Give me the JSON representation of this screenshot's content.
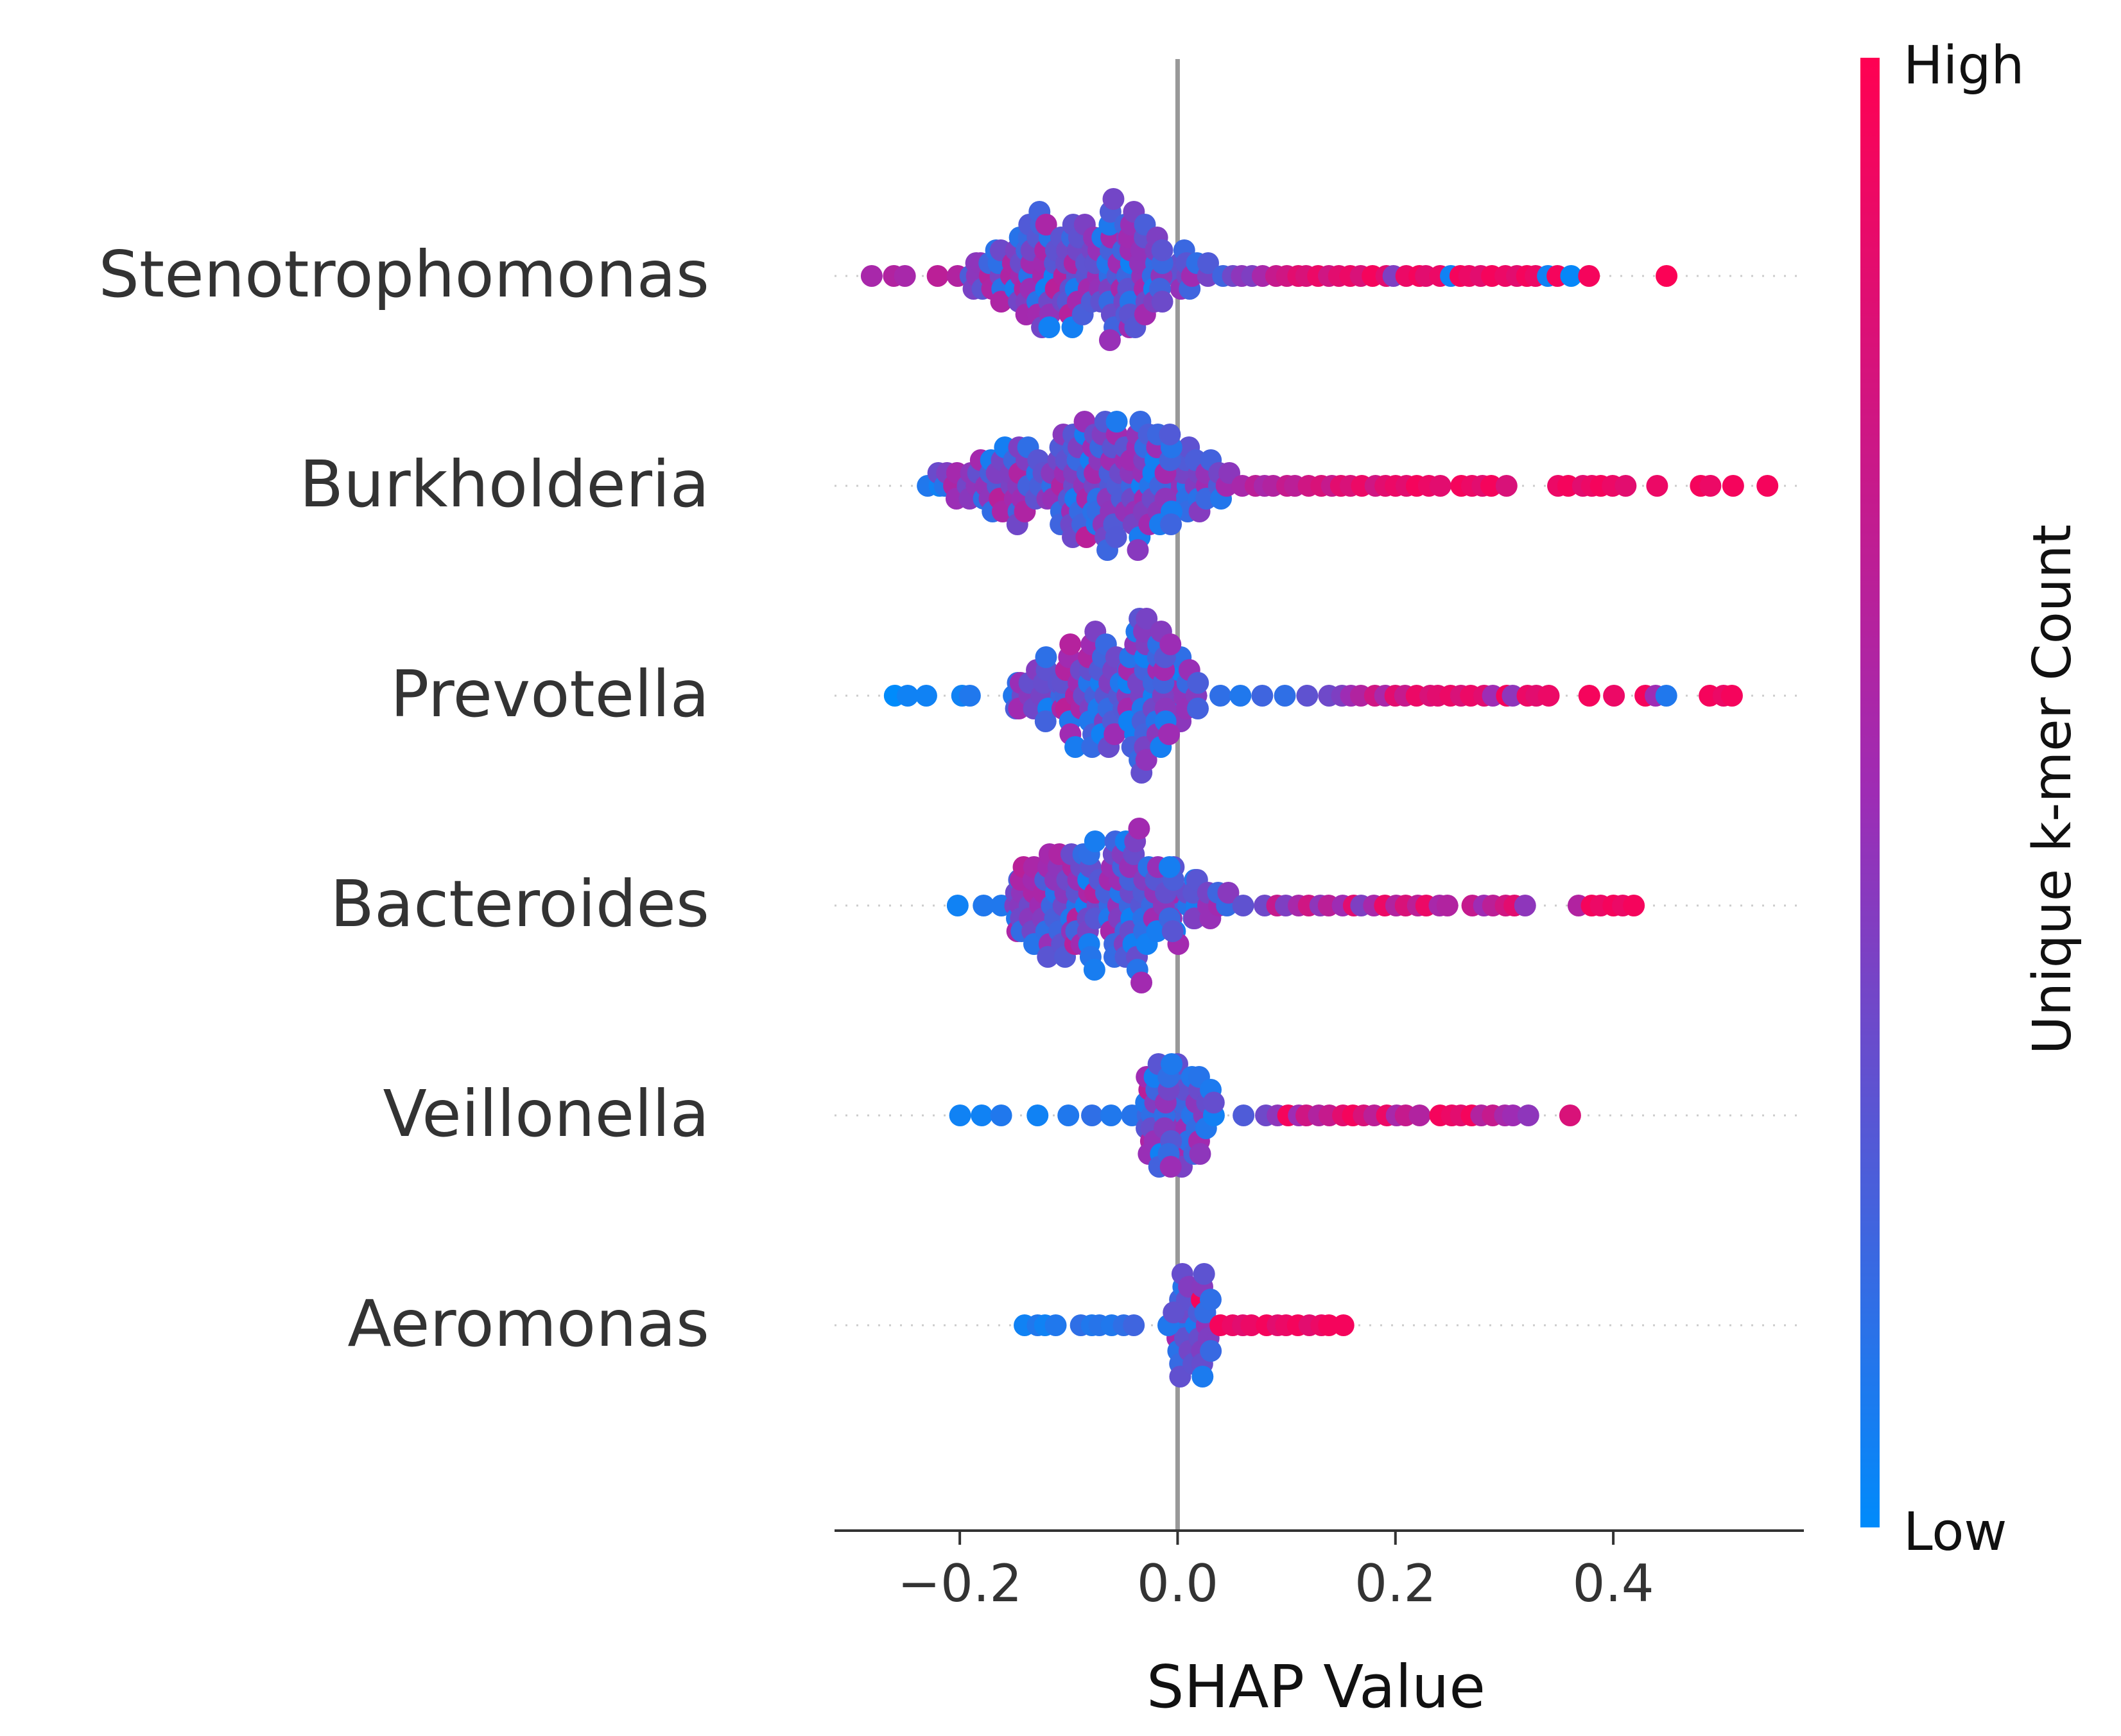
{
  "chart_data": {
    "type": "scatter",
    "subtype": "beeswarm",
    "xlabel": "SHAP Value",
    "x_ticks": [
      -0.2,
      0.0,
      0.2,
      0.4
    ],
    "x_tick_labels": [
      "−0.2",
      "0.0",
      "0.2",
      "0.4"
    ],
    "xlim": [
      -0.315,
      0.575
    ],
    "zero_line": true,
    "grid": false,
    "colorbar": {
      "label": "Unique k-mer Count",
      "high_label": "High",
      "low_label": "Low",
      "low_color": "#008bfb",
      "mid_color": "#9e2cb4",
      "high_color": "#ff0052",
      "placement": "right"
    },
    "features": [
      {
        "name": "Stenotrophomonas",
        "min": -0.28,
        "max": 0.45,
        "core_min": -0.19,
        "core_max": 0.03,
        "peak": -0.09,
        "spread": 0.05,
        "max_height": 13,
        "points": [
          [
            -0.28,
            0.55
          ],
          [
            -0.26,
            0.6
          ],
          [
            -0.25,
            0.55
          ],
          [
            -0.22,
            0.65
          ],
          [
            -0.2,
            0.6
          ],
          [
            -0.18,
            0.55
          ],
          [
            -0.16,
            0.5
          ],
          [
            -0.14,
            0.4
          ],
          [
            -0.12,
            0.35
          ],
          [
            -0.11,
            0.3
          ],
          [
            -0.1,
            0.35
          ],
          [
            -0.09,
            0.3
          ],
          [
            -0.08,
            0.25
          ],
          [
            -0.07,
            0.3
          ],
          [
            -0.06,
            0.25
          ],
          [
            -0.05,
            0.2
          ],
          [
            -0.04,
            0.3
          ],
          [
            -0.03,
            0.35
          ],
          [
            -0.02,
            0.4
          ],
          [
            -0.01,
            0.25
          ],
          [
            0.0,
            0.3
          ],
          [
            0.01,
            0.2
          ],
          [
            0.02,
            0.15
          ],
          [
            0.03,
            0.3
          ],
          [
            0.04,
            0.2
          ],
          [
            0.05,
            0.35
          ],
          [
            0.06,
            0.45
          ],
          [
            0.07,
            0.4
          ],
          [
            0.08,
            0.55
          ],
          [
            0.09,
            0.7
          ],
          [
            0.1,
            0.75
          ],
          [
            0.11,
            0.85
          ],
          [
            0.12,
            0.8
          ],
          [
            0.13,
            0.9
          ],
          [
            0.14,
            0.75
          ],
          [
            0.15,
            0.85
          ],
          [
            0.16,
            0.9
          ],
          [
            0.17,
            0.8
          ],
          [
            0.18,
            0.95
          ],
          [
            0.19,
            0.85
          ],
          [
            0.2,
            0.4
          ],
          [
            0.21,
            0.9
          ],
          [
            0.22,
            0.95
          ],
          [
            0.23,
            0.85
          ],
          [
            0.24,
            0.9
          ],
          [
            0.25,
            0.05
          ],
          [
            0.26,
            0.95
          ],
          [
            0.27,
            0.9
          ],
          [
            0.28,
            0.85
          ],
          [
            0.29,
            0.95
          ],
          [
            0.3,
            0.9
          ],
          [
            0.31,
            0.85
          ],
          [
            0.32,
            0.95
          ],
          [
            0.33,
            0.9
          ],
          [
            0.34,
            0.05
          ],
          [
            0.35,
            0.95
          ],
          [
            0.36,
            0.02
          ],
          [
            0.38,
            0.95
          ],
          [
            0.45,
            0.98
          ]
        ]
      },
      {
        "name": "Burkholderia",
        "min": -0.23,
        "max": 0.54,
        "core_min": -0.22,
        "core_max": 0.05,
        "peak": -0.08,
        "spread": 0.06,
        "max_height": 13,
        "points": [
          [
            -0.23,
            0.1
          ],
          [
            -0.22,
            0.05
          ],
          [
            -0.21,
            0.15
          ],
          [
            -0.2,
            0.1
          ],
          [
            -0.19,
            0.2
          ],
          [
            -0.18,
            0.15
          ],
          [
            -0.17,
            0.25
          ],
          [
            -0.15,
            0.2
          ],
          [
            -0.13,
            0.3
          ],
          [
            -0.11,
            0.35
          ],
          [
            -0.09,
            0.4
          ],
          [
            -0.07,
            0.45
          ],
          [
            -0.05,
            0.5
          ],
          [
            -0.03,
            0.4
          ],
          [
            -0.01,
            0.45
          ],
          [
            0.01,
            0.5
          ],
          [
            0.02,
            0.55
          ],
          [
            0.03,
            0.45
          ],
          [
            0.05,
            0.6
          ],
          [
            0.06,
            0.55
          ],
          [
            0.07,
            0.65
          ],
          [
            0.08,
            0.55
          ],
          [
            0.09,
            0.6
          ],
          [
            0.1,
            0.7
          ],
          [
            0.11,
            0.65
          ],
          [
            0.12,
            0.75
          ],
          [
            0.13,
            0.8
          ],
          [
            0.14,
            0.7
          ],
          [
            0.15,
            0.85
          ],
          [
            0.16,
            0.8
          ],
          [
            0.17,
            0.9
          ],
          [
            0.18,
            0.75
          ],
          [
            0.19,
            0.85
          ],
          [
            0.2,
            0.9
          ],
          [
            0.21,
            0.85
          ],
          [
            0.22,
            0.95
          ],
          [
            0.23,
            0.9
          ],
          [
            0.24,
            0.85
          ],
          [
            0.26,
            0.95
          ],
          [
            0.27,
            0.9
          ],
          [
            0.28,
            0.85
          ],
          [
            0.29,
            0.95
          ],
          [
            0.3,
            0.8
          ],
          [
            0.35,
            0.9
          ],
          [
            0.36,
            0.95
          ],
          [
            0.37,
            0.85
          ],
          [
            0.38,
            0.9
          ],
          [
            0.39,
            0.95
          ],
          [
            0.4,
            0.9
          ],
          [
            0.41,
            0.85
          ],
          [
            0.44,
            0.9
          ],
          [
            0.48,
            0.95
          ],
          [
            0.49,
            0.9
          ],
          [
            0.51,
            0.95
          ],
          [
            0.54,
            0.95
          ]
        ]
      },
      {
        "name": "Prevotella",
        "min": -0.26,
        "max": 0.51,
        "core_min": -0.15,
        "core_max": 0.02,
        "peak": -0.065,
        "spread": 0.04,
        "max_height": 15,
        "points": [
          [
            -0.26,
            0.0
          ],
          [
            -0.25,
            0.05
          ],
          [
            -0.23,
            0.05
          ],
          [
            -0.2,
            0.05
          ],
          [
            -0.19,
            0.1
          ],
          [
            -0.15,
            0.1
          ],
          [
            -0.13,
            0.15
          ],
          [
            -0.1,
            0.1
          ],
          [
            -0.08,
            0.1
          ],
          [
            -0.05,
            0.1
          ],
          [
            -0.02,
            0.12
          ],
          [
            0.0,
            0.12
          ],
          [
            0.02,
            0.1
          ],
          [
            0.04,
            0.15
          ],
          [
            0.06,
            0.1
          ],
          [
            0.08,
            0.2
          ],
          [
            0.1,
            0.15
          ],
          [
            0.12,
            0.3
          ],
          [
            0.14,
            0.35
          ],
          [
            0.15,
            0.4
          ],
          [
            0.16,
            0.5
          ],
          [
            0.17,
            0.6
          ],
          [
            0.18,
            0.75
          ],
          [
            0.19,
            0.55
          ],
          [
            0.2,
            0.85
          ],
          [
            0.21,
            0.7
          ],
          [
            0.22,
            0.9
          ],
          [
            0.23,
            0.8
          ],
          [
            0.24,
            0.85
          ],
          [
            0.25,
            0.9
          ],
          [
            0.26,
            0.8
          ],
          [
            0.27,
            0.9
          ],
          [
            0.28,
            0.85
          ],
          [
            0.29,
            0.5
          ],
          [
            0.3,
            0.95
          ],
          [
            0.31,
            0.45
          ],
          [
            0.32,
            0.9
          ],
          [
            0.33,
            0.85
          ],
          [
            0.34,
            0.9
          ],
          [
            0.38,
            0.95
          ],
          [
            0.4,
            0.9
          ],
          [
            0.43,
            0.95
          ],
          [
            0.44,
            0.5
          ],
          [
            0.45,
            0.1
          ],
          [
            0.49,
            0.95
          ],
          [
            0.5,
            0.9
          ],
          [
            0.51,
            0.95
          ]
        ]
      },
      {
        "name": "Bacteroides",
        "min": -0.2,
        "max": 0.42,
        "core_min": -0.15,
        "core_max": 0.05,
        "peak": -0.07,
        "spread": 0.05,
        "max_height": 14,
        "points": [
          [
            -0.2,
            0.05
          ],
          [
            -0.18,
            0.1
          ],
          [
            -0.16,
            0.1
          ],
          [
            -0.12,
            0.15
          ],
          [
            -0.1,
            0.1
          ],
          [
            -0.08,
            0.15
          ],
          [
            -0.05,
            0.2
          ],
          [
            -0.03,
            0.15
          ],
          [
            0.0,
            0.2
          ],
          [
            0.02,
            0.25
          ],
          [
            0.04,
            0.2
          ],
          [
            0.06,
            0.3
          ],
          [
            0.08,
            0.35
          ],
          [
            0.09,
            0.7
          ],
          [
            0.1,
            0.4
          ],
          [
            0.11,
            0.55
          ],
          [
            0.12,
            0.75
          ],
          [
            0.13,
            0.45
          ],
          [
            0.14,
            0.65
          ],
          [
            0.15,
            0.5
          ],
          [
            0.16,
            0.85
          ],
          [
            0.17,
            0.4
          ],
          [
            0.18,
            0.55
          ],
          [
            0.19,
            0.9
          ],
          [
            0.2,
            0.6
          ],
          [
            0.21,
            0.8
          ],
          [
            0.22,
            0.65
          ],
          [
            0.23,
            0.9
          ],
          [
            0.24,
            0.55
          ],
          [
            0.25,
            0.6
          ],
          [
            0.27,
            0.7
          ],
          [
            0.28,
            0.5
          ],
          [
            0.29,
            0.65
          ],
          [
            0.3,
            0.75
          ],
          [
            0.31,
            0.85
          ],
          [
            0.32,
            0.45
          ],
          [
            0.37,
            0.6
          ],
          [
            0.38,
            0.95
          ],
          [
            0.39,
            0.9
          ],
          [
            0.4,
            0.95
          ],
          [
            0.41,
            0.9
          ],
          [
            0.42,
            0.95
          ]
        ]
      },
      {
        "name": "Veillonella",
        "min": -0.2,
        "max": 0.36,
        "core_min": -0.03,
        "core_max": 0.04,
        "peak": -0.02,
        "spread": 0.025,
        "max_height": 16,
        "points": [
          [
            -0.2,
            0.05
          ],
          [
            -0.18,
            0.05
          ],
          [
            -0.16,
            0.1
          ],
          [
            -0.13,
            0.05
          ],
          [
            -0.1,
            0.1
          ],
          [
            -0.08,
            0.15
          ],
          [
            -0.06,
            0.1
          ],
          [
            -0.04,
            0.12
          ],
          [
            0.0,
            0.15
          ],
          [
            0.02,
            0.12
          ],
          [
            0.04,
            0.2
          ],
          [
            0.06,
            0.25
          ],
          [
            0.08,
            0.35
          ],
          [
            0.09,
            0.45
          ],
          [
            0.1,
            0.95
          ],
          [
            0.11,
            0.5
          ],
          [
            0.12,
            0.75
          ],
          [
            0.13,
            0.6
          ],
          [
            0.14,
            0.7
          ],
          [
            0.15,
            0.85
          ],
          [
            0.16,
            0.95
          ],
          [
            0.17,
            0.8
          ],
          [
            0.18,
            0.65
          ],
          [
            0.19,
            0.9
          ],
          [
            0.2,
            0.55
          ],
          [
            0.21,
            0.7
          ],
          [
            0.22,
            0.6
          ],
          [
            0.24,
            0.95
          ],
          [
            0.25,
            0.9
          ],
          [
            0.26,
            0.85
          ],
          [
            0.27,
            0.95
          ],
          [
            0.28,
            0.6
          ],
          [
            0.29,
            0.7
          ],
          [
            0.3,
            0.55
          ],
          [
            0.31,
            0.5
          ],
          [
            0.32,
            0.45
          ],
          [
            0.36,
            0.8
          ]
        ]
      },
      {
        "name": "Aeromonas",
        "min": -0.14,
        "max": 0.15,
        "core_min": -0.01,
        "core_max": 0.03,
        "peak": 0.0,
        "spread": 0.015,
        "max_height": 16,
        "points": [
          [
            -0.14,
            0.05
          ],
          [
            -0.13,
            0.1
          ],
          [
            -0.12,
            0.05
          ],
          [
            -0.11,
            0.1
          ],
          [
            -0.09,
            0.15
          ],
          [
            -0.08,
            0.1
          ],
          [
            -0.07,
            0.12
          ],
          [
            -0.06,
            0.1
          ],
          [
            -0.05,
            0.15
          ],
          [
            -0.04,
            0.2
          ],
          [
            0.02,
            0.95
          ],
          [
            0.03,
            0.9
          ],
          [
            0.04,
            0.95
          ],
          [
            0.05,
            0.9
          ],
          [
            0.06,
            0.85
          ],
          [
            0.07,
            0.9
          ],
          [
            0.08,
            0.95
          ],
          [
            0.09,
            0.85
          ],
          [
            0.1,
            0.9
          ],
          [
            0.11,
            0.95
          ],
          [
            0.12,
            0.85
          ],
          [
            0.13,
            0.9
          ],
          [
            0.14,
            0.95
          ],
          [
            0.15,
            0.95
          ]
        ]
      }
    ]
  }
}
